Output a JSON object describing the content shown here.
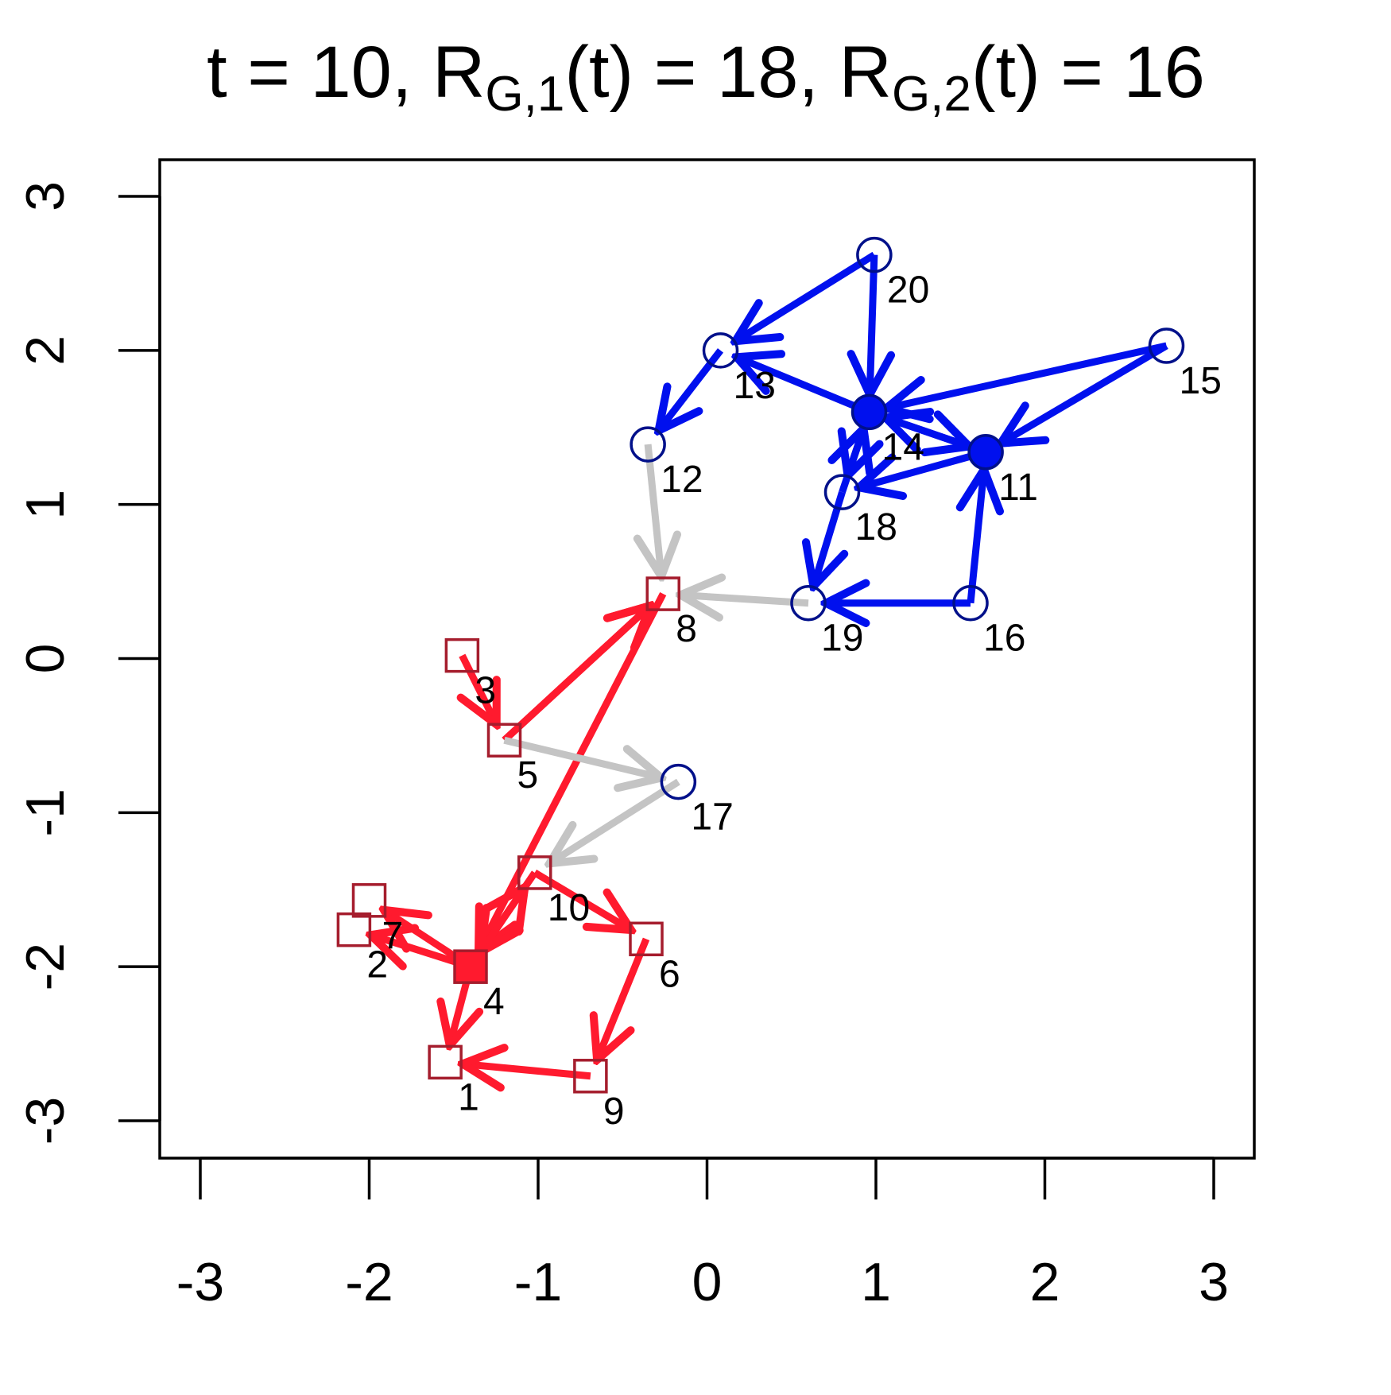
{
  "chart_data": {
    "type": "network",
    "title_parts": [
      {
        "text": "t = 10, R"
      },
      {
        "text": "G,1",
        "subscript": true
      },
      {
        "text": "(t) = 18, R"
      },
      {
        "text": "G,2",
        "subscript": true
      },
      {
        "text": "(t) = 16"
      }
    ],
    "xlim": [
      -3.24,
      3.24
    ],
    "ylim": [
      -3.24,
      3.24
    ],
    "xticks": [
      -3,
      -2,
      -1,
      0,
      1,
      2,
      3
    ],
    "yticks": [
      -3,
      -2,
      -1,
      0,
      1,
      2,
      3
    ],
    "groups": [
      {
        "shape": "square",
        "stroke": "#a51d2d",
        "edge_color": "#ff1a2e",
        "fill": "#ff1a2e"
      },
      {
        "shape": "circle",
        "stroke": "#00108a",
        "edge_color": "#0010ee",
        "fill": "#0010ee"
      }
    ],
    "between_color": "#c4c4c4",
    "nodes": [
      {
        "label": "1",
        "x": -1.55,
        "y": -2.62,
        "group": 0
      },
      {
        "label": "2",
        "x": -2.09,
        "y": -1.76,
        "group": 0
      },
      {
        "label": "3",
        "x": -1.45,
        "y": 0.02,
        "group": 0
      },
      {
        "label": "4",
        "x": -1.4,
        "y": -2.0,
        "group": 0,
        "filled": true
      },
      {
        "label": "5",
        "x": -1.2,
        "y": -0.53,
        "group": 0
      },
      {
        "label": "6",
        "x": -0.36,
        "y": -1.82,
        "group": 0
      },
      {
        "label": "7",
        "x": -2.0,
        "y": -1.57,
        "group": 0
      },
      {
        "label": "8",
        "x": -0.26,
        "y": 0.42,
        "group": 0
      },
      {
        "label": "9",
        "x": -0.69,
        "y": -2.71,
        "group": 0
      },
      {
        "label": "10",
        "x": -1.02,
        "y": -1.39,
        "group": 0
      },
      {
        "label": "11",
        "x": 1.65,
        "y": 1.34,
        "group": 1,
        "filled": true
      },
      {
        "label": "12",
        "x": -0.35,
        "y": 1.39,
        "group": 1
      },
      {
        "label": "13",
        "x": 0.08,
        "y": 2.0,
        "group": 1
      },
      {
        "label": "14",
        "x": 0.96,
        "y": 1.6,
        "group": 1,
        "filled": true
      },
      {
        "label": "15",
        "x": 2.72,
        "y": 2.03,
        "group": 1
      },
      {
        "label": "16",
        "x": 1.56,
        "y": 0.36,
        "group": 1
      },
      {
        "label": "17",
        "x": -0.17,
        "y": -0.8,
        "group": 1
      },
      {
        "label": "18",
        "x": 0.8,
        "y": 1.08,
        "group": 1
      },
      {
        "label": "19",
        "x": 0.6,
        "y": 0.36,
        "group": 1
      },
      {
        "label": "20",
        "x": 0.99,
        "y": 2.62,
        "group": 1
      }
    ],
    "edges": [
      [
        2,
        4
      ],
      [
        4,
        7
      ],
      [
        4,
        7
      ],
      [
        7,
        3
      ],
      [
        3,
        9
      ],
      [
        9,
        5
      ],
      [
        5,
        8
      ],
      [
        8,
        0
      ],
      [
        3,
        0
      ],
      [
        3,
        1
      ],
      [
        3,
        6
      ],
      [
        9,
        3
      ],
      [
        19,
        12
      ],
      [
        19,
        13
      ],
      [
        12,
        11
      ],
      [
        13,
        12
      ],
      [
        14,
        13
      ],
      [
        14,
        10
      ],
      [
        13,
        10
      ],
      [
        10,
        13
      ],
      [
        10,
        17
      ],
      [
        17,
        13
      ],
      [
        13,
        17
      ],
      [
        17,
        18
      ],
      [
        15,
        18
      ],
      [
        15,
        10
      ],
      [
        11,
        7
      ],
      [
        18,
        7
      ],
      [
        4,
        16
      ],
      [
        16,
        9
      ]
    ]
  }
}
